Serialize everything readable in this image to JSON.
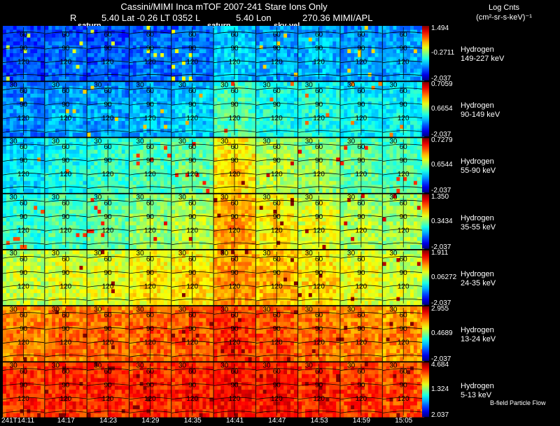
{
  "header": {
    "title": "Cassini/MIMI Inca mTOF  2007-241   Stare   Ions Only",
    "r_label": "R",
    "lat_text": "5.40 Lat -0.26 LT 0352 L",
    "lon_text": "5.40 Lon",
    "lon_value_text": "270.36  MIMI/APL",
    "markers": [
      "saturn",
      "saturn",
      "sky-vel"
    ],
    "units_title": "Log Cnts",
    "units": "(cm²-sr-s-keV)⁻¹"
  },
  "chart_data": {
    "type": "heatmap",
    "title": "Cassini/MIMI Inca mTOF  2007-241   Stare   Ions Only",
    "times": [
      "241T14:11",
      "14:17",
      "14:23",
      "14:29",
      "14:35",
      "14:41",
      "14:47",
      "14:53",
      "14:59",
      "15:05"
    ],
    "contour_labels": [
      "30",
      "60",
      "90",
      "120"
    ],
    "species": [
      {
        "name": "Hydrogen",
        "energy": "149-227 keV",
        "max": "1.494",
        "mid": "-0.2711",
        "min": "-2.037",
        "intensity": [
          0.22,
          0.25,
          0.24,
          0.26,
          0.27,
          0.36,
          0.32,
          0.33,
          0.31,
          0.32
        ]
      },
      {
        "name": "Hydrogen",
        "energy": "90-149 keV",
        "max": "0.7059",
        "mid": "0.6654",
        "min": "-2.037",
        "intensity": [
          0.28,
          0.32,
          0.31,
          0.33,
          0.36,
          0.48,
          0.43,
          0.43,
          0.4,
          0.4
        ]
      },
      {
        "name": "Hydrogen",
        "energy": "55-90 keV",
        "max": "0.7279",
        "mid": "0.6544",
        "min": "-2.037",
        "intensity": [
          0.38,
          0.42,
          0.45,
          0.48,
          0.5,
          0.68,
          0.58,
          0.55,
          0.5,
          0.48
        ]
      },
      {
        "name": "Hydrogen",
        "energy": "35-55 keV",
        "max": "1.350",
        "mid": "0.3434",
        "min": "-2.037",
        "intensity": [
          0.45,
          0.48,
          0.5,
          0.55,
          0.58,
          0.74,
          0.66,
          0.62,
          0.57,
          0.56
        ]
      },
      {
        "name": "Hydrogen",
        "energy": "24-35 keV",
        "max": "1.911",
        "mid": "0.06272",
        "min": "-2.037",
        "intensity": [
          0.6,
          0.62,
          0.63,
          0.66,
          0.68,
          0.76,
          0.72,
          0.68,
          0.64,
          0.6
        ]
      },
      {
        "name": "Hydrogen",
        "energy": "13-24 keV",
        "max": "2.955",
        "mid": "0.4689",
        "min": "-2.037",
        "intensity": [
          0.78,
          0.8,
          0.8,
          0.81,
          0.82,
          0.86,
          0.83,
          0.8,
          0.78,
          0.76
        ]
      },
      {
        "name": "Hydrogen",
        "energy": "5-13 keV",
        "max": "4.684",
        "mid": "1.324",
        "min": "2.037",
        "intensity": [
          0.86,
          0.87,
          0.87,
          0.87,
          0.88,
          0.9,
          0.89,
          0.87,
          0.85,
          0.83
        ]
      }
    ]
  },
  "footer": {
    "note": "B-field Particle Flow"
  }
}
